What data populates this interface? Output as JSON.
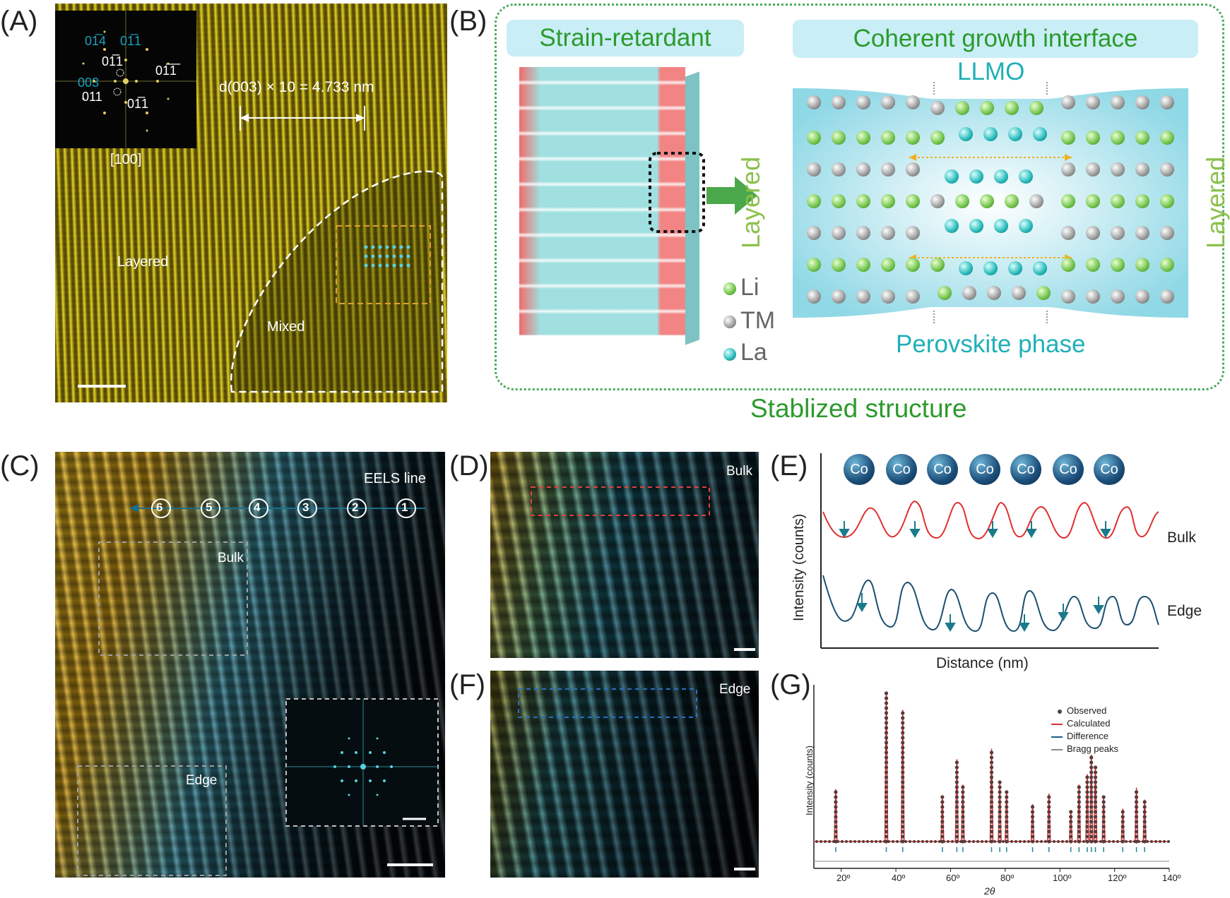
{
  "panels": {
    "a": {
      "label": "(A)",
      "fft_spots": [
        "0̅1̅4",
        "0̅1̅1",
        "0̅1̅1",
        "0̅1̅1",
        "003",
        "011",
        "0̅1̅1"
      ],
      "fft_spot_texts": {
        "s1": "01̅4",
        "s2": "01̅1",
        "s3": "01̅1̅",
        "s4": "01̅1",
        "s5": "003",
        "s6": "011",
        "s7": "01̅1"
      },
      "zone_axis": "[100]",
      "d_spacing": "d(003) × 10 = 4.733 nm",
      "region_layered": "Layered",
      "region_mixed": "Mixed"
    },
    "b": {
      "label": "(B)",
      "strain_title": "Strain-retardant",
      "interface_title": "Coherent growth interface",
      "llmo": "LLMO",
      "layered_left": "Layered",
      "layered_right": "Layered",
      "perovskite": "Perovskite phase",
      "legend": [
        {
          "symbol": "li-atom",
          "text": "Li"
        },
        {
          "symbol": "tm-atom",
          "text": "TM"
        },
        {
          "symbol": "la-atom",
          "text": "La"
        }
      ],
      "caption": "Stablized structure",
      "colors": {
        "green": "#3aa03a",
        "teal": "#1fb0b8",
        "frame": "#2aa050"
      }
    },
    "c": {
      "label": "(C)",
      "eels_line": "EELS line",
      "markers": [
        "6",
        "5",
        "4",
        "3",
        "2",
        "1"
      ],
      "box_bulk": "Bulk",
      "box_edge": "Edge"
    },
    "d": {
      "label": "(D)",
      "tag": "Bulk"
    },
    "e": {
      "label": "(E)",
      "co_atoms": [
        "Co",
        "Co",
        "Co",
        "Co",
        "Co",
        "Co",
        "Co"
      ],
      "ylabel": "Intensity (counts)",
      "xlabel": "Distance (nm)",
      "series": [
        {
          "name": "Bulk",
          "color": "#e03030"
        },
        {
          "name": "Edge",
          "color": "#1a4f6e"
        }
      ]
    },
    "f": {
      "label": "(F)",
      "tag": "Edge"
    },
    "g": {
      "label": "(G)",
      "ylabel": "Intensity (counts)",
      "xlabel": "2θ",
      "legend": [
        {
          "name": "Observed",
          "color": "#444444"
        },
        {
          "name": "Calculated",
          "color": "#e03030"
        },
        {
          "name": "Difference",
          "color": "#1a5f8a"
        },
        {
          "name": "Bragg peaks",
          "color": "#888888"
        }
      ],
      "xticks": [
        "20º",
        "40º",
        "60º",
        "80º",
        "100º",
        "120º",
        "140º"
      ]
    }
  },
  "chart_data": {
    "type": "line",
    "title": "",
    "xlabel": "2θ",
    "ylabel": "Intensity (counts)",
    "xlim": [
      10,
      140
    ],
    "x": [
      18,
      36.5,
      42.5,
      57,
      62.3,
      64.5,
      75,
      78,
      80.5,
      90,
      96,
      104,
      107,
      110,
      111.5,
      113,
      116,
      123,
      128,
      131
    ],
    "series": [
      {
        "name": "Observed",
        "values": [
          0.35,
          1.0,
          0.88,
          0.3,
          0.55,
          0.38,
          0.62,
          0.4,
          0.34,
          0.25,
          0.32,
          0.2,
          0.38,
          0.45,
          0.58,
          0.5,
          0.3,
          0.22,
          0.36,
          0.28
        ]
      },
      {
        "name": "Calculated",
        "values": [
          0.35,
          1.0,
          0.88,
          0.3,
          0.55,
          0.38,
          0.62,
          0.4,
          0.34,
          0.25,
          0.32,
          0.2,
          0.38,
          0.45,
          0.58,
          0.5,
          0.3,
          0.22,
          0.36,
          0.28
        ]
      }
    ]
  }
}
